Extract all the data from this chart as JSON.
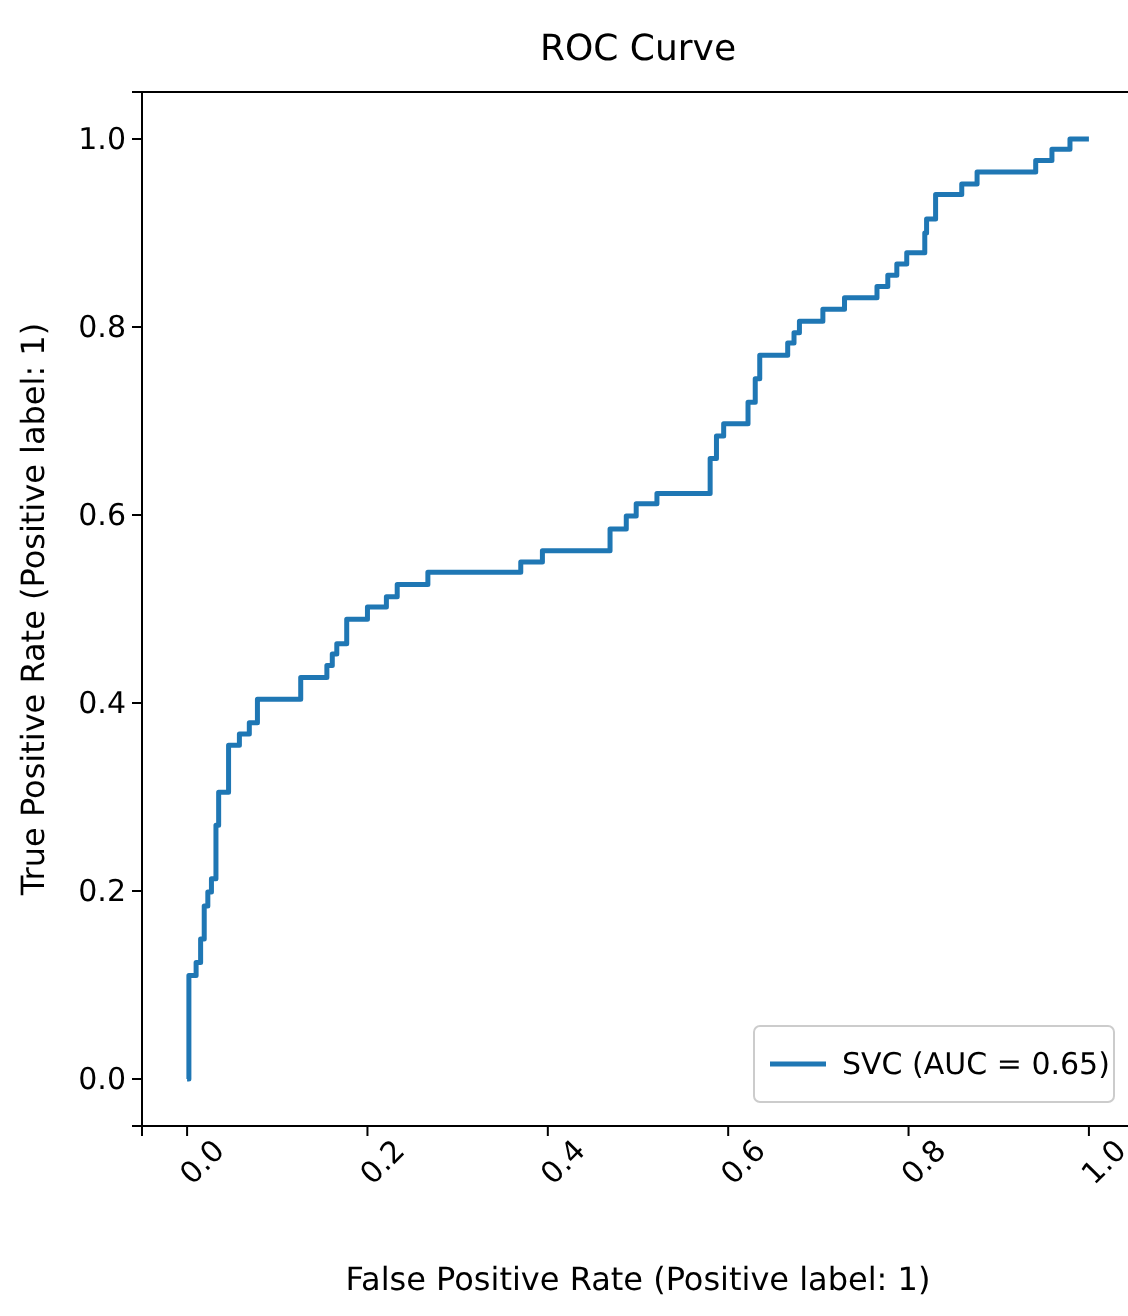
{
  "chart_data": {
    "type": "step",
    "title": "ROC Curve",
    "xlabel": "False Positive Rate (Positive label: 1)",
    "ylabel": "True Positive Rate (Positive label: 1)",
    "xlim": [
      -0.05,
      1.05
    ],
    "ylim": [
      -0.05,
      1.05
    ],
    "xticks": [
      {
        "value": 0,
        "label": "0.0"
      },
      {
        "value": 0.2,
        "label": "0.2"
      },
      {
        "value": 0.4,
        "label": "0.4"
      },
      {
        "value": 0.6,
        "label": "0.6"
      },
      {
        "value": 0.8,
        "label": "0.8"
      },
      {
        "value": 1,
        "label": "1.0"
      }
    ],
    "yticks": [
      {
        "value": 0,
        "label": "0.0"
      },
      {
        "value": 0.2,
        "label": "0.2"
      },
      {
        "value": 0.4,
        "label": "0.4"
      },
      {
        "value": 0.6,
        "label": "0.6"
      },
      {
        "value": 0.8,
        "label": "0.8"
      },
      {
        "value": 1,
        "label": "1.0"
      }
    ],
    "legend": "bottom right",
    "line_style": "solid",
    "series": [
      {
        "name": "SVC (AUC = 0.65)",
        "color": "#1f77b4",
        "x": [
          0,
          0.002,
          0.01,
          0.015,
          0.019,
          0.023,
          0.027,
          0.032,
          0.035,
          0.046,
          0.058,
          0.069,
          0.078,
          0.126,
          0.155,
          0.161,
          0.166,
          0.177,
          0.2,
          0.221,
          0.233,
          0.267,
          0.37,
          0.394,
          0.469,
          0.487,
          0.498,
          0.521,
          0.58,
          0.587,
          0.595,
          0.622,
          0.63,
          0.635,
          0.666,
          0.673,
          0.679,
          0.705,
          0.729,
          0.765,
          0.777,
          0.787,
          0.798,
          0.818,
          0.82,
          0.83,
          0.859,
          0.876,
          0.941,
          0.959,
          0.979,
          1.0
        ],
        "values": [
          0,
          0.11,
          0.124,
          0.149,
          0.184,
          0.199,
          0.213,
          0.27,
          0.305,
          0.355,
          0.367,
          0.379,
          0.404,
          0.427,
          0.44,
          0.452,
          0.463,
          0.489,
          0.502,
          0.513,
          0.526,
          0.539,
          0.55,
          0.562,
          0.585,
          0.599,
          0.612,
          0.623,
          0.66,
          0.684,
          0.697,
          0.72,
          0.745,
          0.77,
          0.783,
          0.794,
          0.806,
          0.819,
          0.831,
          0.843,
          0.855,
          0.867,
          0.879,
          0.9,
          0.915,
          0.941,
          0.952,
          0.965,
          0.977,
          0.989,
          1.0,
          1.0
        ]
      }
    ]
  }
}
